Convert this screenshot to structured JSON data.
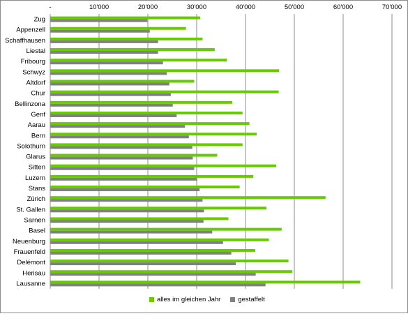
{
  "chart_data": {
    "type": "bar",
    "orientation": "horizontal",
    "categories": [
      "Zug",
      "Appenzell",
      "Schaffhausen",
      "Liestal",
      "Fribourg",
      "Schwyz",
      "Altdorf",
      "Chur",
      "Bellinzona",
      "Genf",
      "Aarau",
      "Bern",
      "Solothurn",
      "Glarus",
      "Sitten",
      "Luzern",
      "Stans",
      "Zürich",
      "St. Gallen",
      "Sarnen",
      "Basel",
      "Neuenburg",
      "Frauenfeld",
      "Delémont",
      "Herisau",
      "Lausanne"
    ],
    "series": [
      {
        "name": "alles im gleichen Jahr",
        "color": "#66cc00",
        "values": [
          30700,
          27800,
          31200,
          33700,
          36200,
          46900,
          29500,
          46800,
          37300,
          39400,
          40800,
          42300,
          39400,
          34200,
          46300,
          41600,
          38800,
          56400,
          44300,
          36500,
          47400,
          44800,
          42000,
          48800,
          49600,
          63500
        ]
      },
      {
        "name": "gestaffelt",
        "color": "#808080",
        "values": [
          19900,
          20400,
          22100,
          22100,
          23100,
          23900,
          24400,
          24700,
          25100,
          25900,
          27600,
          28400,
          29100,
          29200,
          29500,
          30100,
          30600,
          31200,
          31500,
          31400,
          33200,
          35400,
          37100,
          38000,
          42100,
          44100
        ]
      }
    ],
    "xlim": [
      0,
      70000
    ],
    "xticks": [
      "-",
      "10'000",
      "20'000",
      "30'000",
      "40'000",
      "50'000",
      "60'000",
      "70'000"
    ],
    "grid": true,
    "legend_position": "bottom"
  }
}
